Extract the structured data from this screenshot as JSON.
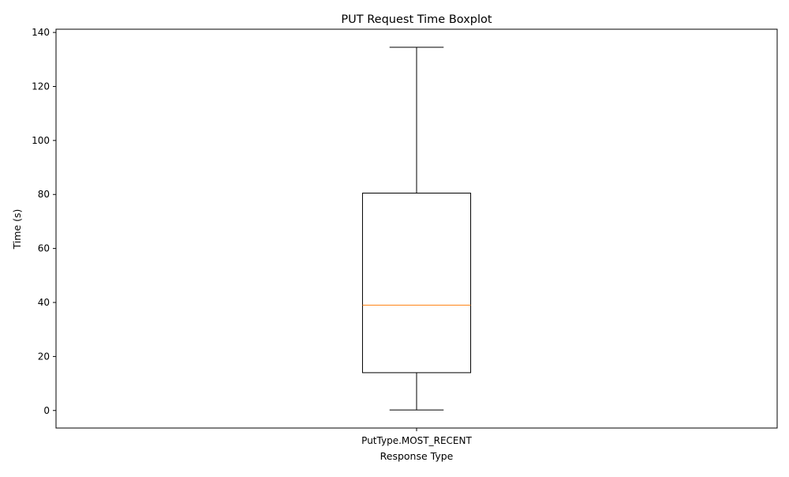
{
  "chart_data": {
    "type": "boxplot",
    "title": "PUT Request Time Boxplot",
    "xlabel": "Response Type",
    "ylabel": "Time (s)",
    "categories": [
      "PutType.MOST_RECENT"
    ],
    "series": [
      {
        "category": "PutType.MOST_RECENT",
        "whisker_low": 0.2,
        "q1": 14,
        "median": 39,
        "q3": 80.5,
        "whisker_high": 134.5
      }
    ],
    "ylim": [
      -6.5,
      141.2
    ],
    "yticks": [
      0,
      20,
      40,
      60,
      80,
      100,
      120,
      140
    ],
    "grid": false,
    "legend": "none",
    "colors": {
      "box": "#000000",
      "median": "#ff7f0e",
      "axes": "#000000"
    }
  }
}
